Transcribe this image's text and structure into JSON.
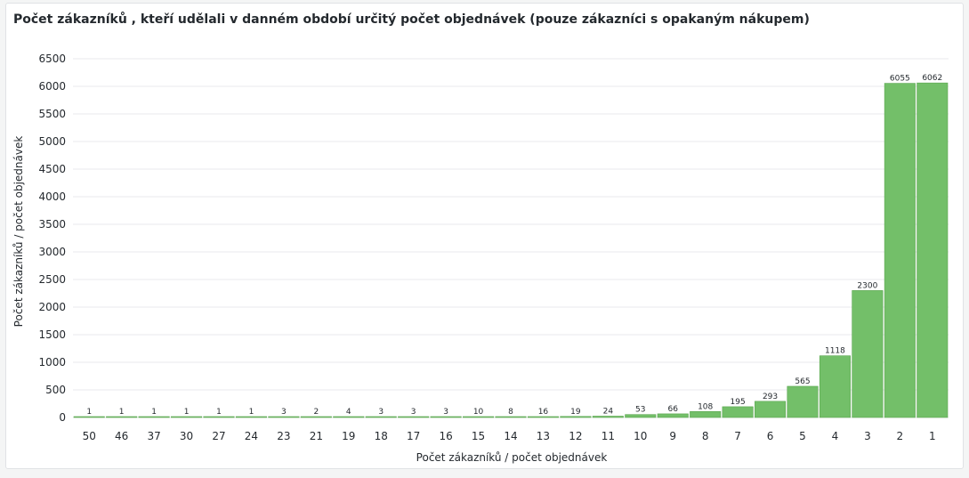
{
  "panel": {
    "title": "Počet zákazníků , kteří udělali v danném období určitý počet objednávek (pouze zákazníci s opakaným nákupem)"
  },
  "chart_data": {
    "type": "bar",
    "categories": [
      "50",
      "46",
      "37",
      "30",
      "27",
      "24",
      "23",
      "21",
      "19",
      "18",
      "17",
      "16",
      "15",
      "14",
      "13",
      "12",
      "11",
      "10",
      "9",
      "8",
      "7",
      "6",
      "5",
      "4",
      "3",
      "2",
      "1"
    ],
    "values": [
      1,
      1,
      1,
      1,
      1,
      1,
      3,
      2,
      4,
      3,
      3,
      3,
      10,
      8,
      16,
      19,
      24,
      53,
      66,
      108,
      195,
      293,
      565,
      1118,
      2300,
      6055,
      6062
    ],
    "title": "Počet zákazníků , kteří udělali v danném období určitý počet objednávek (pouze zákazníci s opakaným nákupem)",
    "xlabel": "Počet zákazníků / počet objednávek",
    "ylabel": "Počet zákazníků / počet objednávek",
    "ylim": [
      0,
      6500
    ],
    "yticks": [
      0,
      500,
      1000,
      1500,
      2000,
      2500,
      3000,
      3500,
      4000,
      4500,
      5000,
      5500,
      6000,
      6500
    ],
    "grid": true,
    "legend": "none",
    "colors": {
      "bar_fill": "#73bf69",
      "bar_stroke": "#5aa64f",
      "grid": "#e9eaec"
    }
  }
}
